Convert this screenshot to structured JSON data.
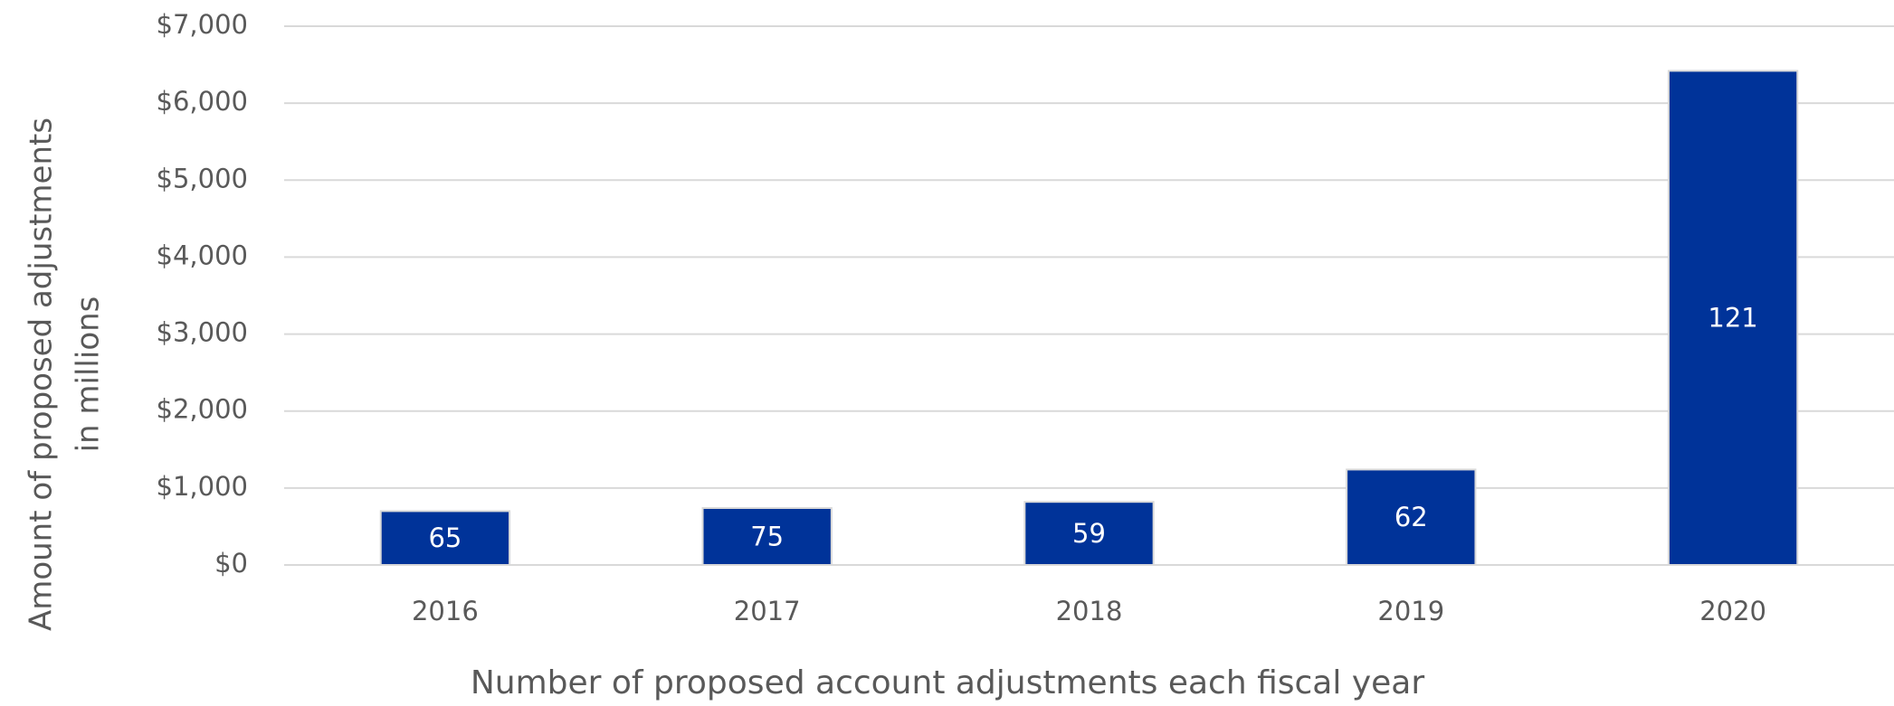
{
  "chart_data": {
    "type": "bar",
    "ylabel": [
      "Amount of proposed adjustments",
      "in millions"
    ],
    "xlabel": "Number of proposed account adjustments each fiscal year",
    "categories": [
      "2016",
      "2017",
      "2018",
      "2019",
      "2020"
    ],
    "values": [
      700,
      740,
      820,
      1240,
      6420
    ],
    "bar_labels": [
      65,
      75,
      59,
      62,
      121
    ],
    "color": "#003399",
    "ylim": [
      0,
      7000
    ],
    "yticks": [
      {
        "value": 0,
        "label": "$0"
      },
      {
        "value": 1000,
        "label": "$1,000"
      },
      {
        "value": 2000,
        "label": "$2,000"
      },
      {
        "value": 3000,
        "label": "$3,000"
      },
      {
        "value": 4000,
        "label": "$4,000"
      },
      {
        "value": 5000,
        "label": "$5,000"
      },
      {
        "value": 6000,
        "label": "$6,000"
      },
      {
        "value": 7000,
        "label": "$7,000"
      }
    ],
    "grid": true
  }
}
